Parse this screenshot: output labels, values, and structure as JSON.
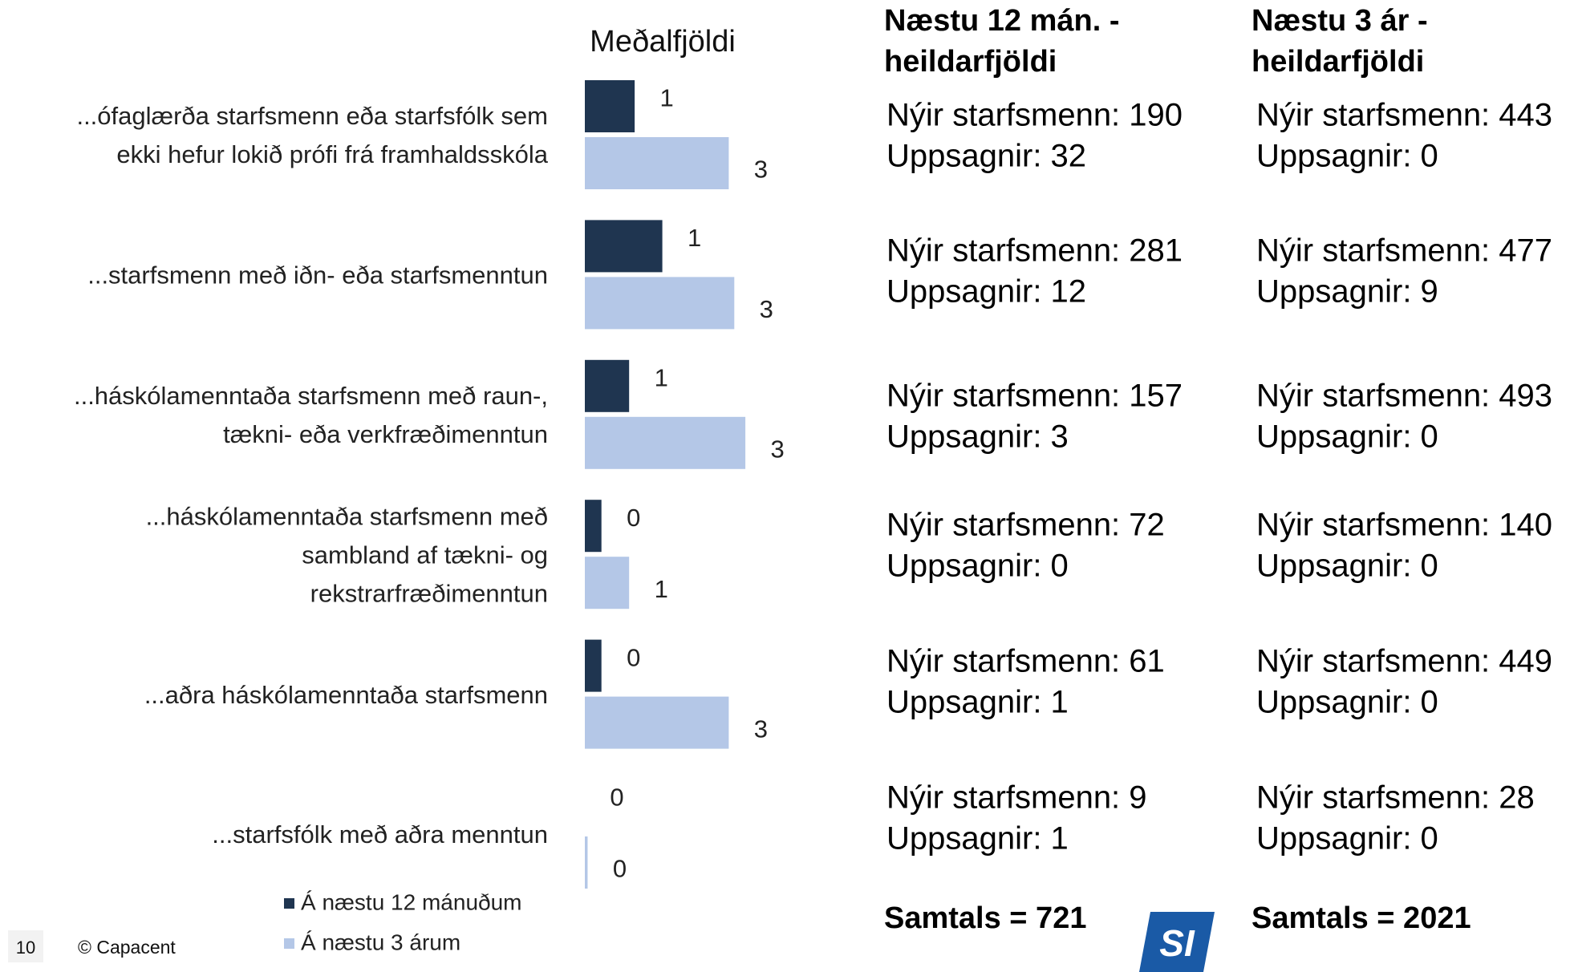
{
  "chart_data": {
    "type": "bar",
    "orientation": "horizontal",
    "title": "Meðalfjöldi",
    "categories": [
      [
        "...ófaglærða starfsmenn eða starfsfólk sem",
        "ekki hefur lokið prófi frá framhaldsskóla"
      ],
      [
        "...starfsmenn með iðn- eða starfsmenntun"
      ],
      [
        "...háskólamenntaða starfsmenn með raun-,",
        "tækni- eða verkfræðimenntun"
      ],
      [
        "...háskólamenntaða starfsmenn með",
        "sambland af tækni- og",
        "rekstrarfræðimenntun"
      ],
      [
        "...aðra háskólamenntaða starfsmenn"
      ],
      [
        "...starfsfólk með aðra menntun"
      ]
    ],
    "series": [
      {
        "name": "Á næstu 12 mánuðum",
        "color": "#1f3550",
        "values": [
          0.9,
          1.4,
          0.8,
          0.3,
          0.3,
          0.0
        ],
        "value_labels": [
          "1",
          "1",
          "1",
          "0",
          "0",
          "0"
        ]
      },
      {
        "name": "Á næstu 3 árum",
        "color": "#b4c7e7",
        "values": [
          2.6,
          2.7,
          2.9,
          0.8,
          2.6,
          0.05
        ],
        "value_labels": [
          "3",
          "3",
          "3",
          "1",
          "3",
          "0"
        ]
      }
    ]
  },
  "tables": [
    {
      "header": [
        "Næstu 12 mán. -",
        "heildarfjöldi"
      ],
      "rows": [
        [
          "Nýir starfsmenn: 190",
          "Uppsagnir: 32"
        ],
        [
          "Nýir starfsmenn: 281",
          "Uppsagnir: 12"
        ],
        [
          "Nýir starfsmenn: 157",
          "Uppsagnir: 3"
        ],
        [
          "Nýir starfsmenn: 72",
          "Uppsagnir: 0"
        ],
        [
          "Nýir starfsmenn: 61",
          "Uppsagnir: 1"
        ],
        [
          "Nýir starfsmenn: 9",
          "Uppsagnir: 1"
        ]
      ],
      "total": "Samtals = 721"
    },
    {
      "header": [
        "Næstu 3 ár -",
        "heildarfjöldi"
      ],
      "rows": [
        [
          "Nýir starfsmenn: 443",
          "Uppsagnir: 0"
        ],
        [
          "Nýir starfsmenn: 477",
          "Uppsagnir: 9"
        ],
        [
          "Nýir starfsmenn: 493",
          "Uppsagnir: 0"
        ],
        [
          "Nýir starfsmenn: 140",
          "Uppsagnir: 0"
        ],
        [
          "Nýir starfsmenn: 449",
          "Uppsagnir: 0"
        ],
        [
          "Nýir starfsmenn: 28",
          "Uppsagnir: 0"
        ]
      ],
      "total": "Samtals = 2021"
    }
  ],
  "footer": {
    "page": "10",
    "copyright": "© Capacent",
    "logo": "SI"
  }
}
